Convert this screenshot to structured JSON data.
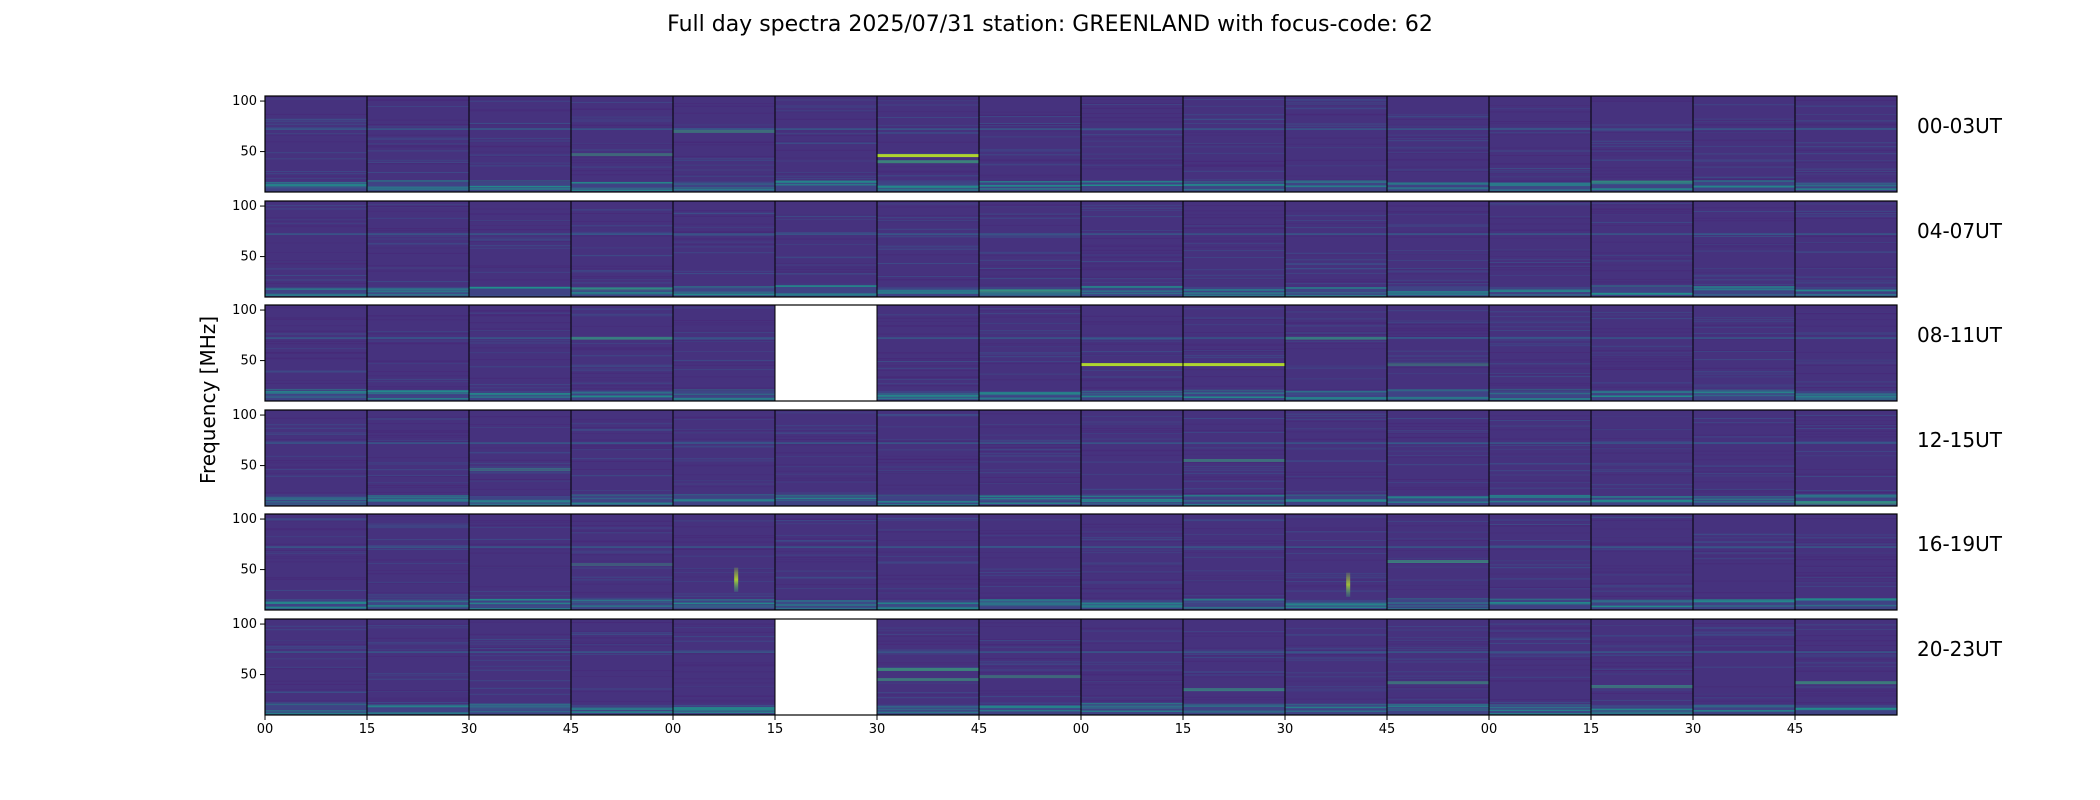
{
  "chart_data": {
    "type": "heatmap",
    "title": "Full day spectra 2025/07/31 station: GREENLAND with focus-code: 62",
    "ylabel": "Frequency [MHz]",
    "xlabel": "",
    "ylim": [
      10,
      105
    ],
    "yticks": [
      50,
      100
    ],
    "xtick_labels": [
      "00",
      "15",
      "30",
      "45",
      "00",
      "15",
      "30",
      "45",
      "00",
      "15",
      "30",
      "45",
      "00",
      "15",
      "30",
      "45"
    ],
    "panels_per_row": 16,
    "panel_minutes": 15,
    "colormap": "viridis",
    "colors": {
      "background": "#440154",
      "panel_base": "#46327e",
      "emission": "#35b779",
      "strong": "#b5de2b",
      "missing": "#ffffff"
    },
    "rows": [
      {
        "label": "00-03UT",
        "missing_panels": [],
        "features": [
          {
            "panel": 6,
            "freq": 46,
            "strength": 0.95,
            "kind": "band"
          },
          {
            "panel": 6,
            "freq": 40,
            "strength": 0.6,
            "kind": "band"
          },
          {
            "panel": 4,
            "freq": 70,
            "strength": 0.45,
            "kind": "band"
          },
          {
            "panel": 3,
            "freq": 47,
            "strength": 0.4,
            "kind": "band"
          },
          {
            "panel": 13,
            "freq": 20,
            "strength": 0.35,
            "kind": "band"
          }
        ]
      },
      {
        "label": "04-07UT",
        "missing_panels": [],
        "features": [
          {
            "panel": 7,
            "freq": 16,
            "strength": 0.5,
            "kind": "band"
          },
          {
            "panel": 3,
            "freq": 18,
            "strength": 0.35,
            "kind": "band"
          }
        ]
      },
      {
        "label": "08-11UT",
        "missing_panels": [
          5
        ],
        "features": [
          {
            "panel": 8,
            "freq": 46,
            "strength": 0.95,
            "kind": "band"
          },
          {
            "panel": 9,
            "freq": 46,
            "strength": 0.95,
            "kind": "band"
          },
          {
            "panel": 3,
            "freq": 72,
            "strength": 0.45,
            "kind": "band"
          },
          {
            "panel": 10,
            "freq": 72,
            "strength": 0.4,
            "kind": "band"
          },
          {
            "panel": 11,
            "freq": 46,
            "strength": 0.35,
            "kind": "band"
          }
        ]
      },
      {
        "label": "12-15UT",
        "missing_panels": [],
        "features": [
          {
            "panel": 9,
            "freq": 55,
            "strength": 0.45,
            "kind": "band"
          },
          {
            "panel": 2,
            "freq": 46,
            "strength": 0.3,
            "kind": "band"
          },
          {
            "panel": 15,
            "freq": 13,
            "strength": 0.5,
            "kind": "band"
          }
        ]
      },
      {
        "label": "16-19UT",
        "missing_panels": [],
        "features": [
          {
            "panel": 4,
            "freq": 40,
            "strength": 0.9,
            "kind": "burst"
          },
          {
            "panel": 10,
            "freq": 35,
            "strength": 0.8,
            "kind": "burst"
          },
          {
            "panel": 11,
            "freq": 58,
            "strength": 0.5,
            "kind": "band"
          },
          {
            "panel": 3,
            "freq": 55,
            "strength": 0.3,
            "kind": "band"
          }
        ]
      },
      {
        "label": "20-23UT",
        "missing_panels": [
          5
        ],
        "features": [
          {
            "panel": 6,
            "freq": 55,
            "strength": 0.6,
            "kind": "band"
          },
          {
            "panel": 6,
            "freq": 45,
            "strength": 0.5,
            "kind": "band"
          },
          {
            "panel": 7,
            "freq": 48,
            "strength": 0.4,
            "kind": "band"
          },
          {
            "panel": 9,
            "freq": 35,
            "strength": 0.45,
            "kind": "band"
          },
          {
            "panel": 11,
            "freq": 42,
            "strength": 0.45,
            "kind": "band"
          },
          {
            "panel": 13,
            "freq": 38,
            "strength": 0.45,
            "kind": "band"
          },
          {
            "panel": 15,
            "freq": 42,
            "strength": 0.55,
            "kind": "band"
          }
        ]
      }
    ]
  }
}
